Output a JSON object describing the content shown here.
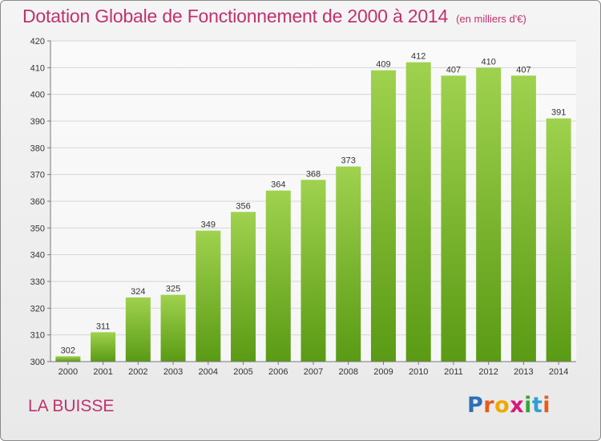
{
  "header": {
    "title": "Dotation Globale de Fonctionnement de 2000 à 2014",
    "unit": "(en milliers d'€)"
  },
  "footer": {
    "commune": "LA BUISSE",
    "logo_text": "Proxiti",
    "logo_colors": [
      "#2f6fb5",
      "#e85a1c",
      "#f0a800",
      "#d6197a",
      "#3aa535",
      "#2f9fd6",
      "#e85a1c"
    ]
  },
  "colors": {
    "accent": "#c0326e",
    "bar_top": "#9fd24e",
    "bar_bottom": "#5a9a14",
    "grid": "#d6d6d6"
  },
  "chart_data": {
    "type": "bar",
    "categories": [
      "2000",
      "2001",
      "2002",
      "2003",
      "2004",
      "2005",
      "2006",
      "2007",
      "2008",
      "2009",
      "2010",
      "2011",
      "2012",
      "2013",
      "2014"
    ],
    "values": [
      302,
      311,
      324,
      325,
      349,
      356,
      364,
      368,
      373,
      409,
      412,
      407,
      410,
      407,
      391
    ],
    "ylim": [
      300,
      420
    ],
    "yticks": [
      300,
      310,
      320,
      330,
      340,
      350,
      360,
      370,
      380,
      390,
      400,
      410,
      420
    ],
    "grid": true,
    "legend": "none"
  }
}
